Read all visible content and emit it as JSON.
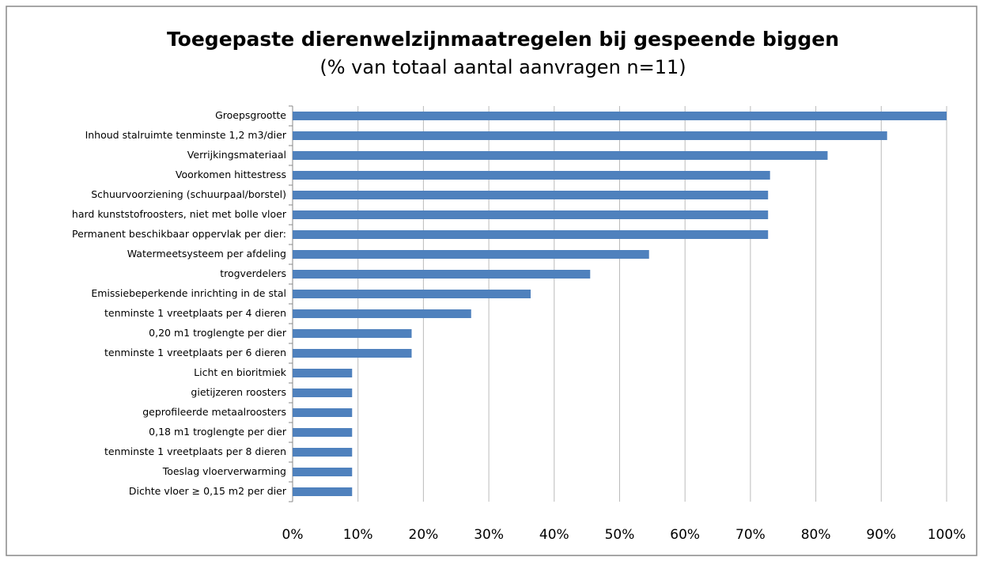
{
  "chart_data": {
    "type": "barh",
    "title": "Toegepaste dierenwelzijnmaatregelen bij gespeende biggen",
    "subtitle": "(% van totaal aantal aanvragen n=11)",
    "categories": [
      "Groepsgrootte",
      "Inhoud stalruimte tenminste 1,2 m3/dier",
      "Verrijkingsmateriaal",
      "Voorkomen hittestress",
      "Schuurvoorziening (schuurpaal/borstel)",
      "hard kunststofroosters, niet met bolle vloer",
      "Permanent beschikbaar oppervlak per dier:",
      "Watermeetsysteem per afdeling",
      "trogverdelers",
      "Emissiebeperkende inrichting in de stal",
      "tenminste 1 vreetplaats per 4 dieren",
      "0,20 m1 troglengte per dier",
      "tenminste 1 vreetplaats per 6 dieren",
      "Licht en bioritmiek",
      "gietijzeren roosters",
      "geprofileerde metaalroosters",
      "0,18 m1 troglengte per dier",
      "tenminste 1 vreetplaats per 8 dieren",
      "Toeslag vloerverwarming",
      "Dichte vloer ≥ 0,15 m2  per dier"
    ],
    "values": [
      100,
      90.9,
      81.8,
      73,
      72.7,
      72.7,
      72.7,
      54.5,
      45.5,
      36.4,
      27.3,
      18.2,
      18.2,
      9.1,
      9.1,
      9.1,
      9.1,
      9.1,
      9.1,
      9.1
    ],
    "color": "#4f81bd",
    "xlim": [
      0,
      100
    ],
    "xticks": [
      {
        "value": 0,
        "label": "0%"
      },
      {
        "value": 10,
        "label": "10%"
      },
      {
        "value": 20,
        "label": "20%"
      },
      {
        "value": 30,
        "label": "30%"
      },
      {
        "value": 40,
        "label": "40%"
      },
      {
        "value": 50,
        "label": "50%"
      },
      {
        "value": 60,
        "label": "60%"
      },
      {
        "value": 70,
        "label": "70%"
      },
      {
        "value": 80,
        "label": "80%"
      },
      {
        "value": 90,
        "label": "90%"
      },
      {
        "value": 100,
        "label": "100%"
      }
    ],
    "grid": true
  }
}
